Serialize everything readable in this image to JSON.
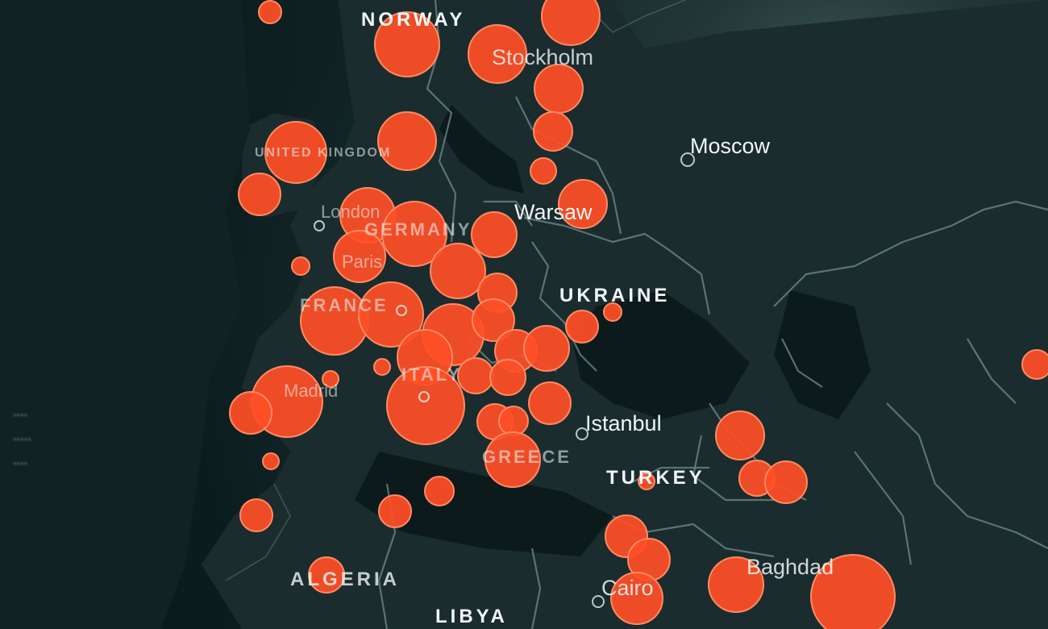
{
  "map": {
    "theme": "dark",
    "colors": {
      "background": "#0d1d1f",
      "land": "#1a2c2e",
      "border": "#6f8c8f",
      "bubble_fill": "#ff4f26",
      "bubble_stroke": "#ff8a63",
      "label": "#f2f6f6"
    },
    "marker_icon": "circle-bubble",
    "labels": {
      "norway": "NORWAY",
      "stockholm": "Stockholm",
      "moscow": "Moscow",
      "warsaw": "Warsaw",
      "ukraine": "UKRAINE",
      "istanbul": "Istanbul",
      "turkey": "TURKEY",
      "libya": "LIBYA",
      "london": "London",
      "paris": "Paris",
      "madrid": "Madrid",
      "germany": "GERMANY",
      "france": "FRANCE",
      "italy": "ITALY",
      "greece": "GREECE",
      "united_kingdom": "UNITED KINGDOM",
      "algeria": "ALGERIA",
      "cairo": "Cairo",
      "baghdad": "Baghdad"
    },
    "legend_lines": [
      "••••",
      "•••••",
      "••••"
    ]
  }
}
